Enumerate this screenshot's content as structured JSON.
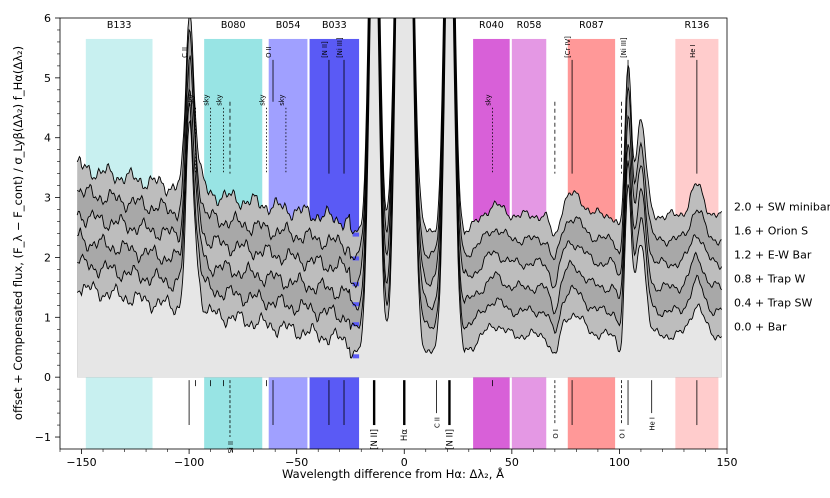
{
  "chart_data": {
    "type": "line",
    "xlabel": "Wavelength difference from Hα: Δλ₂, Å",
    "ylabel": "offset + Compensated flux, (F_λ − F_cont) / σ_Lyβ(Δλ₂) f_Hα(Δλ₂)",
    "xlim": [
      -160,
      150
    ],
    "ylim": [
      -1.2,
      6
    ],
    "xticks": [
      -150,
      -100,
      -50,
      0,
      50,
      100,
      150
    ],
    "xtick_labels": [
      "−150",
      "−100",
      "−50",
      "0",
      "50",
      "100",
      "150"
    ],
    "yticks": [
      -1,
      0,
      1,
      2,
      3,
      4,
      5,
      6
    ],
    "ytick_labels": [
      "−1",
      "0",
      "1",
      "2",
      "3",
      "4",
      "5",
      "6"
    ],
    "grid": false,
    "bands": [
      {
        "name": "B133",
        "x0": -148,
        "x1": -117,
        "color": "#c8f0f0"
      },
      {
        "name": "B080",
        "x0": -93,
        "x1": -66,
        "color": "#98e4e4"
      },
      {
        "name": "B054",
        "x0": -63,
        "x1": -45,
        "color": "#a0a0ff"
      },
      {
        "name": "B033",
        "x0": -44,
        "x1": -21,
        "color": "#5a5af5"
      },
      {
        "name": "R040",
        "x0": 32,
        "x1": 49,
        "color": "#d860d8"
      },
      {
        "name": "R058",
        "x0": 50,
        "x1": 66,
        "color": "#e498e4"
      },
      {
        "name": "R087",
        "x0": 76,
        "x1": 98,
        "color": "#ff9898"
      },
      {
        "name": "R136",
        "x0": 126,
        "x1": 146,
        "color": "#ffcccc"
      }
    ],
    "series": [
      {
        "name": "0.0 + Bar",
        "offset": 0.0,
        "continuum": 0.85
      },
      {
        "name": "0.4 + Trap SW",
        "offset": 0.4,
        "continuum": 0.85
      },
      {
        "name": "0.8 + Trap W",
        "offset": 0.8,
        "continuum": 0.85
      },
      {
        "name": "1.2 + E-W Bar",
        "offset": 1.2,
        "continuum": 0.85
      },
      {
        "name": "1.6 + Orion S",
        "offset": 1.6,
        "continuum": 0.85
      },
      {
        "name": "2.0 + SW minibar",
        "offset": 2.0,
        "continuum": 0.85
      }
    ],
    "upper_lines": [
      {
        "label": "C II",
        "x": -100,
        "y_top": 5.3,
        "y_bottom": 4.6,
        "style": "solid"
      },
      {
        "label": "sky",
        "x": -97,
        "y_top": 4.5,
        "y_bottom": 3.4,
        "style": "dotted"
      },
      {
        "label": "sky",
        "x": -90,
        "y_top": 4.5,
        "y_bottom": 3.4,
        "style": "dotted"
      },
      {
        "label": "sky",
        "x": -84,
        "y_top": 4.5,
        "y_bottom": 3.4,
        "style": "dotted"
      },
      {
        "label": "",
        "x": -81,
        "y_top": 4.6,
        "y_bottom": 3.4,
        "style": "dashed"
      },
      {
        "label": "sky",
        "x": -64,
        "y_top": 4.5,
        "y_bottom": 3.4,
        "style": "dotted"
      },
      {
        "label": "O II",
        "x": -61,
        "y_top": 5.3,
        "y_bottom": 4.6,
        "style": "solid"
      },
      {
        "label": "sky",
        "x": -55,
        "y_top": 4.5,
        "y_bottom": 3.4,
        "style": "dotted"
      },
      {
        "label": "[N II]",
        "x": -35,
        "y_top": 5.3,
        "y_bottom": 3.4,
        "style": "solid"
      },
      {
        "label": "[Ni III]",
        "x": -28,
        "y_top": 5.3,
        "y_bottom": 3.4,
        "style": "solid"
      },
      {
        "label": "sky",
        "x": 41,
        "y_top": 4.5,
        "y_bottom": 3.4,
        "style": "dotted"
      },
      {
        "label": "",
        "x": 70,
        "y_top": 4.6,
        "y_bottom": 3.4,
        "style": "dashed"
      },
      {
        "label": "[Cr IV]",
        "x": 78,
        "y_top": 5.3,
        "y_bottom": 3.4,
        "style": "solid"
      },
      {
        "label": "",
        "x": 101,
        "y_top": 4.6,
        "y_bottom": 3.4,
        "style": "dashed"
      },
      {
        "label": "[Ni III]",
        "x": 104,
        "y_top": 5.3,
        "y_bottom": 4.8,
        "style": "solid"
      },
      {
        "label": "He I",
        "x": 136,
        "y_top": 5.3,
        "y_bottom": 3.4,
        "style": "solid"
      }
    ],
    "lower_lines": [
      {
        "label": "",
        "x": -100,
        "y_top": -0.05,
        "y_bottom": -0.8,
        "style": "solid",
        "heavy": false
      },
      {
        "label": "",
        "x": -97,
        "y_top": -0.05,
        "y_bottom": -0.15,
        "style": "solid",
        "heavy": false
      },
      {
        "label": "",
        "x": -90,
        "y_top": -0.05,
        "y_bottom": -0.15,
        "style": "solid",
        "heavy": false
      },
      {
        "label": "",
        "x": -84,
        "y_top": -0.05,
        "y_bottom": -0.15,
        "style": "solid",
        "heavy": false
      },
      {
        "label": "Si II",
        "x": -81,
        "y_top": -0.05,
        "y_bottom": -1.0,
        "style": "dashed",
        "heavy": false
      },
      {
        "label": "",
        "x": -64,
        "y_top": -0.05,
        "y_bottom": -0.15,
        "style": "solid",
        "heavy": false
      },
      {
        "label": "",
        "x": -61,
        "y_top": -0.05,
        "y_bottom": -0.8,
        "style": "solid",
        "heavy": false
      },
      {
        "label": "",
        "x": -35,
        "y_top": -0.05,
        "y_bottom": -0.8,
        "style": "solid",
        "heavy": false
      },
      {
        "label": "",
        "x": -28,
        "y_top": -0.05,
        "y_bottom": -0.8,
        "style": "solid",
        "heavy": false
      },
      {
        "label": "[N II]",
        "x": -14,
        "y_top": -0.05,
        "y_bottom": -0.8,
        "style": "solid",
        "heavy": true
      },
      {
        "label": "Hα",
        "x": 0,
        "y_top": -0.05,
        "y_bottom": -0.8,
        "style": "solid",
        "heavy": true
      },
      {
        "label": "C II",
        "x": 15,
        "y_top": -0.05,
        "y_bottom": -0.6,
        "style": "solid",
        "heavy": false
      },
      {
        "label": "[N II]",
        "x": 21,
        "y_top": -0.05,
        "y_bottom": -0.8,
        "style": "solid",
        "heavy": true
      },
      {
        "label": "",
        "x": 41,
        "y_top": -0.05,
        "y_bottom": -0.15,
        "style": "solid",
        "heavy": false
      },
      {
        "label": "O I",
        "x": 70,
        "y_top": -0.05,
        "y_bottom": -0.8,
        "style": "dashed",
        "heavy": false
      },
      {
        "label": "",
        "x": 78,
        "y_top": -0.05,
        "y_bottom": -0.8,
        "style": "solid",
        "heavy": false
      },
      {
        "label": "O I",
        "x": 101,
        "y_top": -0.05,
        "y_bottom": -0.8,
        "style": "dashed",
        "heavy": false
      },
      {
        "label": "",
        "x": 104,
        "y_top": -0.05,
        "y_bottom": -0.8,
        "style": "solid",
        "heavy": false
      },
      {
        "label": "He I",
        "x": 115,
        "y_top": -0.05,
        "y_bottom": -0.6,
        "style": "solid",
        "heavy": false
      },
      {
        "label": "",
        "x": 136,
        "y_top": -0.05,
        "y_bottom": -0.8,
        "style": "solid",
        "heavy": false
      }
    ],
    "colors": {
      "fill_light": "#e6e6e6",
      "fill_dark": "#bdbdbd",
      "fill_darker": "#a8a8a8",
      "line": "#000000",
      "bar_marker": "#5a5af5"
    }
  }
}
